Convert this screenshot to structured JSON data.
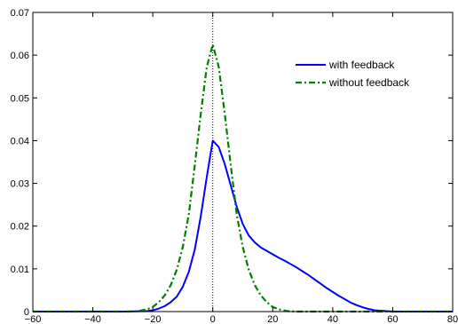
{
  "chart_data": {
    "type": "line",
    "xlim": [
      -60,
      80
    ],
    "ylim": [
      0,
      0.07
    ],
    "x_ticks": [
      -60,
      -40,
      -20,
      0,
      20,
      40,
      60,
      80
    ],
    "y_ticks": [
      0,
      0.01,
      0.02,
      0.03,
      0.04,
      0.05,
      0.06,
      0.07
    ],
    "x_tick_labels": [
      "−60",
      "−40",
      "−20",
      "0",
      "20",
      "40",
      "60",
      "80"
    ],
    "y_tick_labels": [
      "0",
      "0.01",
      "0.02",
      "0.03",
      "0.04",
      "0.05",
      "0.06",
      "0.07"
    ],
    "grid": false,
    "legend_position": "top-right",
    "vertical_reference_line": {
      "x": 0,
      "style": "dotted",
      "color": "#000000"
    },
    "series": [
      {
        "name": "with feedback",
        "color": "#0000ff",
        "line_style": "solid",
        "x": [
          -60,
          -30,
          -22,
          -20,
          -18,
          -16,
          -14,
          -12,
          -10,
          -8,
          -6,
          -4,
          -2,
          0,
          2,
          4,
          6,
          8,
          10,
          12,
          14,
          16,
          18,
          20,
          22,
          24,
          26,
          28,
          30,
          32,
          34,
          36,
          38,
          40,
          42,
          44,
          46,
          48,
          50,
          52,
          54,
          56,
          58,
          60,
          62,
          80
        ],
        "y": [
          0,
          0,
          0.0001,
          0.0003,
          0.0007,
          0.0013,
          0.0022,
          0.0035,
          0.0058,
          0.0093,
          0.0145,
          0.0223,
          0.0315,
          0.04,
          0.0385,
          0.0345,
          0.0295,
          0.0245,
          0.0205,
          0.0178,
          0.0162,
          0.015,
          0.0142,
          0.0134,
          0.0126,
          0.0119,
          0.0111,
          0.0103,
          0.0094,
          0.0085,
          0.0075,
          0.0065,
          0.0055,
          0.0046,
          0.0037,
          0.0029,
          0.0021,
          0.0015,
          0.001,
          0.0006,
          0.0003,
          0.0002,
          0.0001,
          0,
          0,
          0
        ]
      },
      {
        "name": "without feedback",
        "color": "#007f00",
        "line_style": "dash-dot",
        "x": [
          -60,
          -28,
          -25,
          -22,
          -20,
          -18,
          -16,
          -14,
          -12,
          -10,
          -8,
          -6,
          -4,
          -2,
          0,
          2,
          4,
          6,
          8,
          10,
          12,
          14,
          16,
          18,
          20,
          22,
          25,
          28,
          80
        ],
        "y": [
          0,
          0,
          0.0001,
          0.0005,
          0.0011,
          0.0022,
          0.0038,
          0.0062,
          0.0098,
          0.0151,
          0.0227,
          0.0342,
          0.0463,
          0.0572,
          0.0625,
          0.0572,
          0.0463,
          0.0342,
          0.0227,
          0.0151,
          0.0098,
          0.0062,
          0.0038,
          0.0022,
          0.0011,
          0.0005,
          0.0001,
          0,
          0
        ]
      }
    ]
  }
}
